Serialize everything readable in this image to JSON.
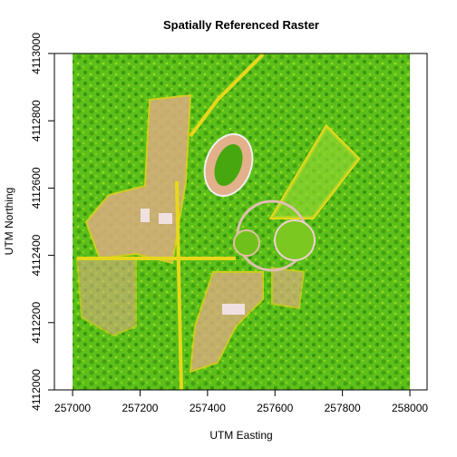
{
  "chart_data": {
    "type": "raster",
    "title": "Spatially Referenced Raster",
    "x_label": "UTM Easting",
    "y_label": "UTM Northing",
    "extent": {
      "x": [
        257000,
        258000
      ],
      "y": [
        4112000,
        4113000
      ]
    },
    "xlim": [
      256946,
      258051
    ],
    "ylim": [
      4112000,
      4113000
    ],
    "xticks": [
      257000,
      257200,
      257400,
      257600,
      257800,
      258000
    ],
    "yticks": [
      4112000,
      4112200,
      4112400,
      4112600,
      4112800,
      4113000
    ],
    "color": "#5cbf1a"
  }
}
